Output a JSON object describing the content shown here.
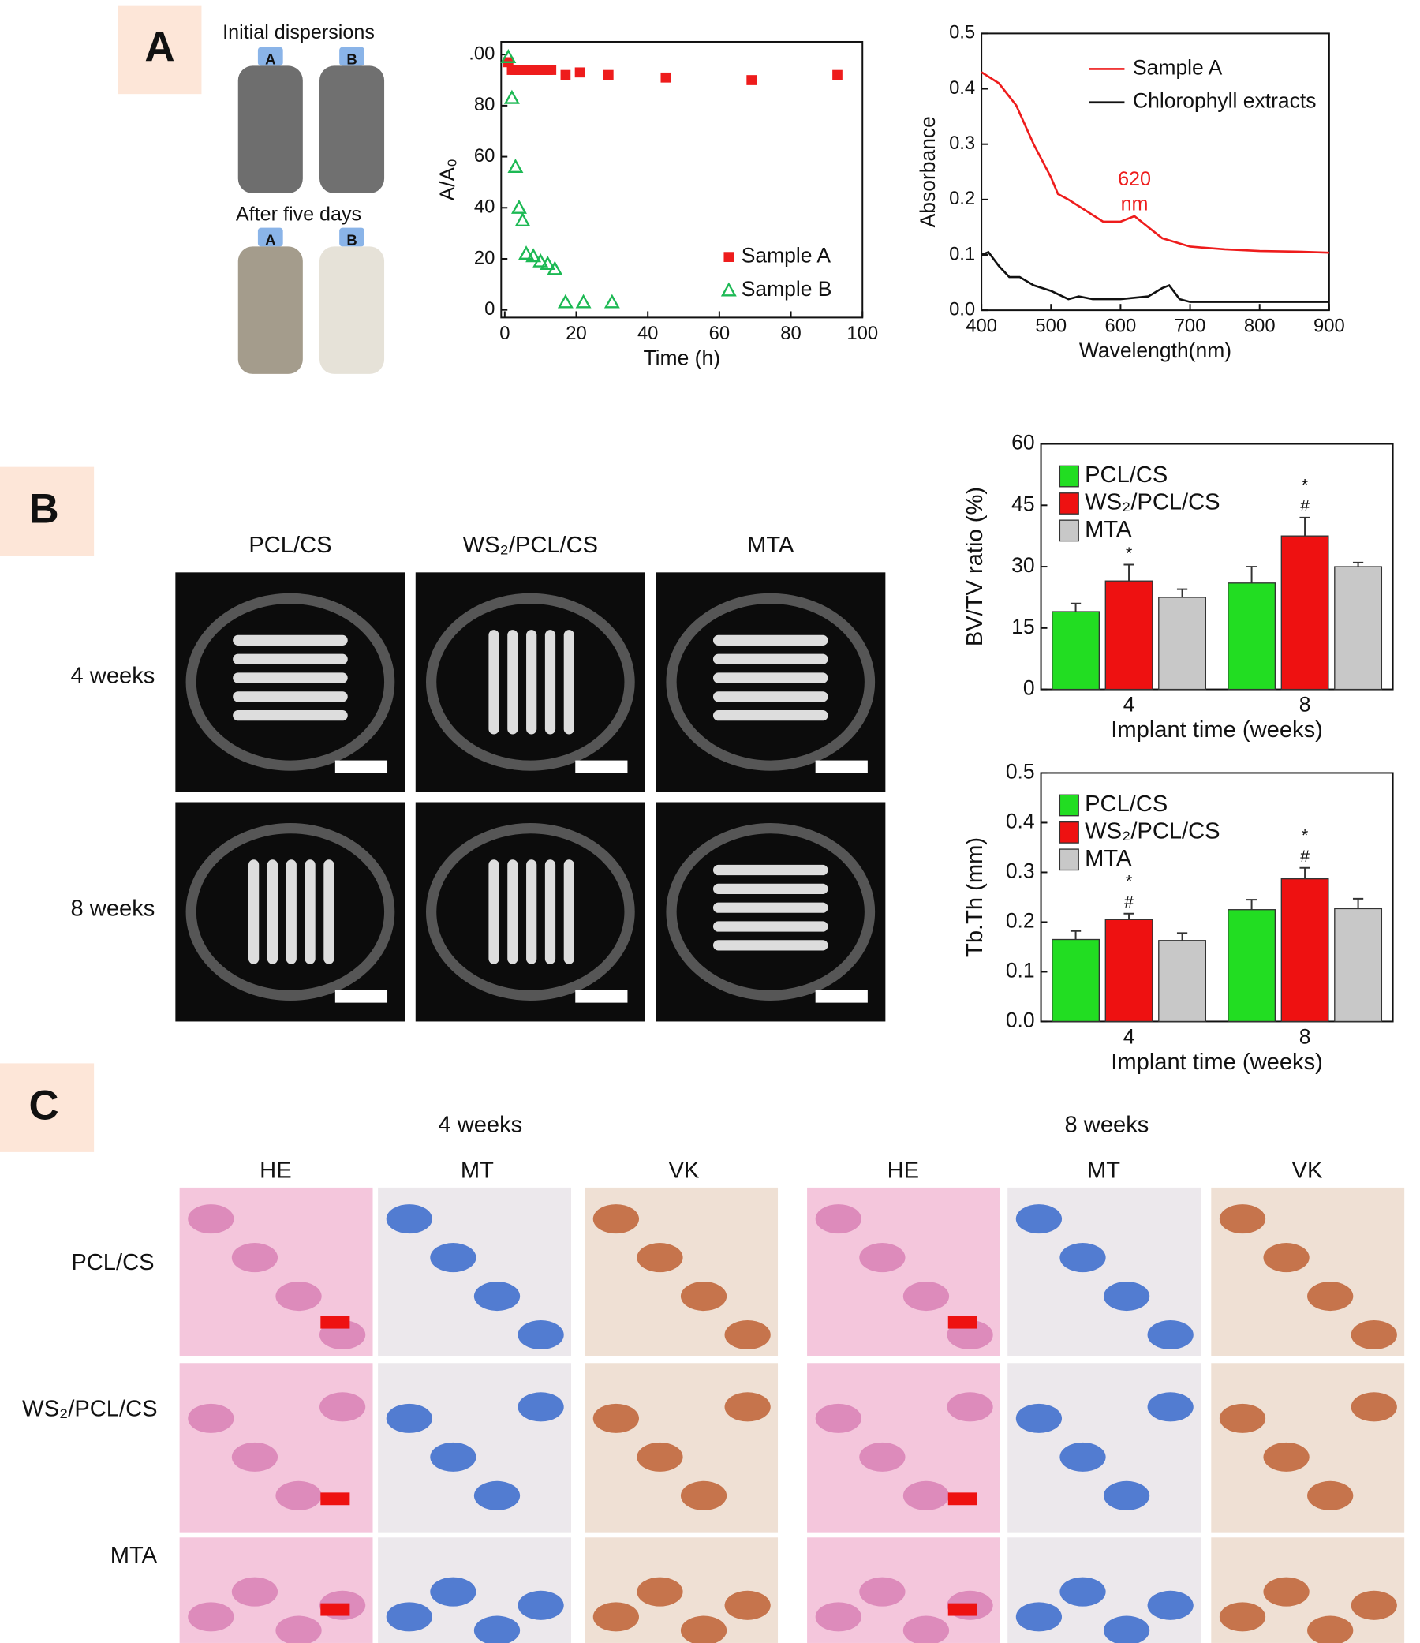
{
  "figure": {
    "panels": [
      "A",
      "B",
      "C"
    ],
    "bottles": {
      "initial": "Initial dispersions",
      "after": "After five days",
      "labels": [
        "A",
        "B"
      ]
    },
    "ct": {
      "columns": [
        "PCL/CS",
        "WS₂/PCL/CS",
        "MTA"
      ],
      "rows": [
        "4 weeks",
        "8 weeks"
      ]
    },
    "histology": {
      "groups": [
        "4 weeks",
        "8 weeks"
      ],
      "stains": [
        "HE",
        "MT",
        "VK",
        "HE",
        "MT",
        "VK"
      ],
      "rows": [
        "PCL/CS",
        "WS₂/PCL/CS",
        "MTA"
      ]
    }
  },
  "chart_data": [
    {
      "type": "scatter",
      "xlabel": "Time (h)",
      "ylabel": "A/A₀",
      "xlim": [
        -1,
        100
      ],
      "xticks": [
        0,
        20,
        40,
        60,
        80,
        100
      ],
      "ylim": [
        -3,
        105
      ],
      "yticks": [
        0,
        20,
        40,
        60,
        80,
        {
          "value": 100,
          "label": ".00"
        }
      ],
      "legend": "lower right",
      "series": [
        {
          "name": "Sample A",
          "color": "#ee1c1c",
          "marker": "square",
          "x": [
            1,
            2,
            3,
            4,
            5,
            6,
            7,
            8,
            9,
            10,
            11,
            12,
            13,
            17,
            21,
            29,
            45,
            69,
            93
          ],
          "values": [
            97,
            94,
            94,
            94,
            94,
            94,
            94,
            94,
            94,
            94,
            94,
            94,
            94,
            92,
            93,
            92,
            91,
            90,
            92
          ]
        },
        {
          "name": "Sample B",
          "color": "#1db954",
          "marker": "triangle",
          "x": [
            1,
            2,
            3,
            4,
            5,
            6,
            8,
            10,
            12,
            14,
            17,
            22,
            30
          ],
          "values": [
            99,
            83,
            56,
            40,
            35,
            22,
            21,
            19,
            18,
            16,
            3,
            3,
            3
          ]
        }
      ]
    },
    {
      "type": "line",
      "xlabel": "Wavelength(nm)",
      "ylabel": "Absorbance",
      "xlim": [
        400,
        900
      ],
      "xticks": [
        400,
        500,
        600,
        700,
        800,
        900
      ],
      "ylim": [
        0,
        0.5
      ],
      "yticks": [
        {
          "value": 0,
          "label": "0.0"
        },
        0.1,
        0.2,
        0.3,
        0.4,
        0.5
      ],
      "legend": "upper right",
      "annotations": [
        "620",
        "nm"
      ],
      "series": [
        {
          "name": "Sample A",
          "color": "#ee1c1c",
          "x": [
            400,
            425,
            450,
            475,
            500,
            510,
            525,
            550,
            575,
            600,
            620,
            640,
            660,
            700,
            750,
            800,
            850,
            900
          ],
          "values": [
            0.43,
            0.41,
            0.37,
            0.3,
            0.24,
            0.21,
            0.2,
            0.18,
            0.16,
            0.16,
            0.17,
            0.15,
            0.13,
            0.115,
            0.11,
            0.107,
            0.106,
            0.104
          ]
        },
        {
          "name": "Chlorophyll extracts",
          "color": "#111111",
          "x": [
            400,
            410,
            425,
            440,
            455,
            475,
            500,
            525,
            540,
            560,
            600,
            640,
            660,
            670,
            685,
            700,
            900
          ],
          "values": [
            0.1,
            0.105,
            0.08,
            0.06,
            0.06,
            0.045,
            0.035,
            0.02,
            0.025,
            0.02,
            0.02,
            0.025,
            0.04,
            0.045,
            0.02,
            0.015,
            0.015
          ]
        }
      ]
    },
    {
      "type": "bar",
      "xlabel": "Implant time (weeks)",
      "ylabel": "BV/TV ratio (%)",
      "categories": [
        "4",
        "8"
      ],
      "ylim": [
        0,
        60
      ],
      "yticks": [
        0,
        15,
        30,
        45,
        60
      ],
      "legend": "upper left",
      "series": [
        {
          "name": "PCL/CS",
          "color": "#22dd22",
          "values": [
            19,
            26
          ],
          "errors": [
            2,
            4
          ]
        },
        {
          "name": "WS₂/PCL/CS",
          "color": "#ee1111",
          "values": [
            26.5,
            37.5
          ],
          "errors": [
            4,
            4.5
          ],
          "sig_labels": [
            [
              "*"
            ],
            [
              "*",
              "#"
            ]
          ]
        },
        {
          "name": "MTA",
          "color": "#c8c8c8",
          "values": [
            22.5,
            30
          ],
          "errors": [
            2,
            1
          ]
        }
      ]
    },
    {
      "type": "bar",
      "xlabel": "Implant time (weeks)",
      "ylabel": "Tb.Th (mm)",
      "categories": [
        "4",
        "8"
      ],
      "ylim": [
        0,
        0.5
      ],
      "yticks": [
        {
          "value": 0,
          "label": "0.0"
        },
        0.1,
        0.2,
        0.3,
        0.4,
        0.5
      ],
      "legend": "upper left",
      "series": [
        {
          "name": "PCL/CS",
          "color": "#22dd22",
          "values": [
            0.165,
            0.225
          ],
          "errors": [
            0.017,
            0.02
          ]
        },
        {
          "name": "WS₂/PCL/CS",
          "color": "#ee1111",
          "values": [
            0.205,
            0.287
          ],
          "errors": [
            0.012,
            0.022
          ],
          "sig_labels": [
            [
              "*",
              "#"
            ],
            [
              "*",
              "#"
            ]
          ]
        },
        {
          "name": "MTA",
          "color": "#c8c8c8",
          "values": [
            0.163,
            0.227
          ],
          "errors": [
            0.015,
            0.02
          ]
        }
      ]
    }
  ]
}
